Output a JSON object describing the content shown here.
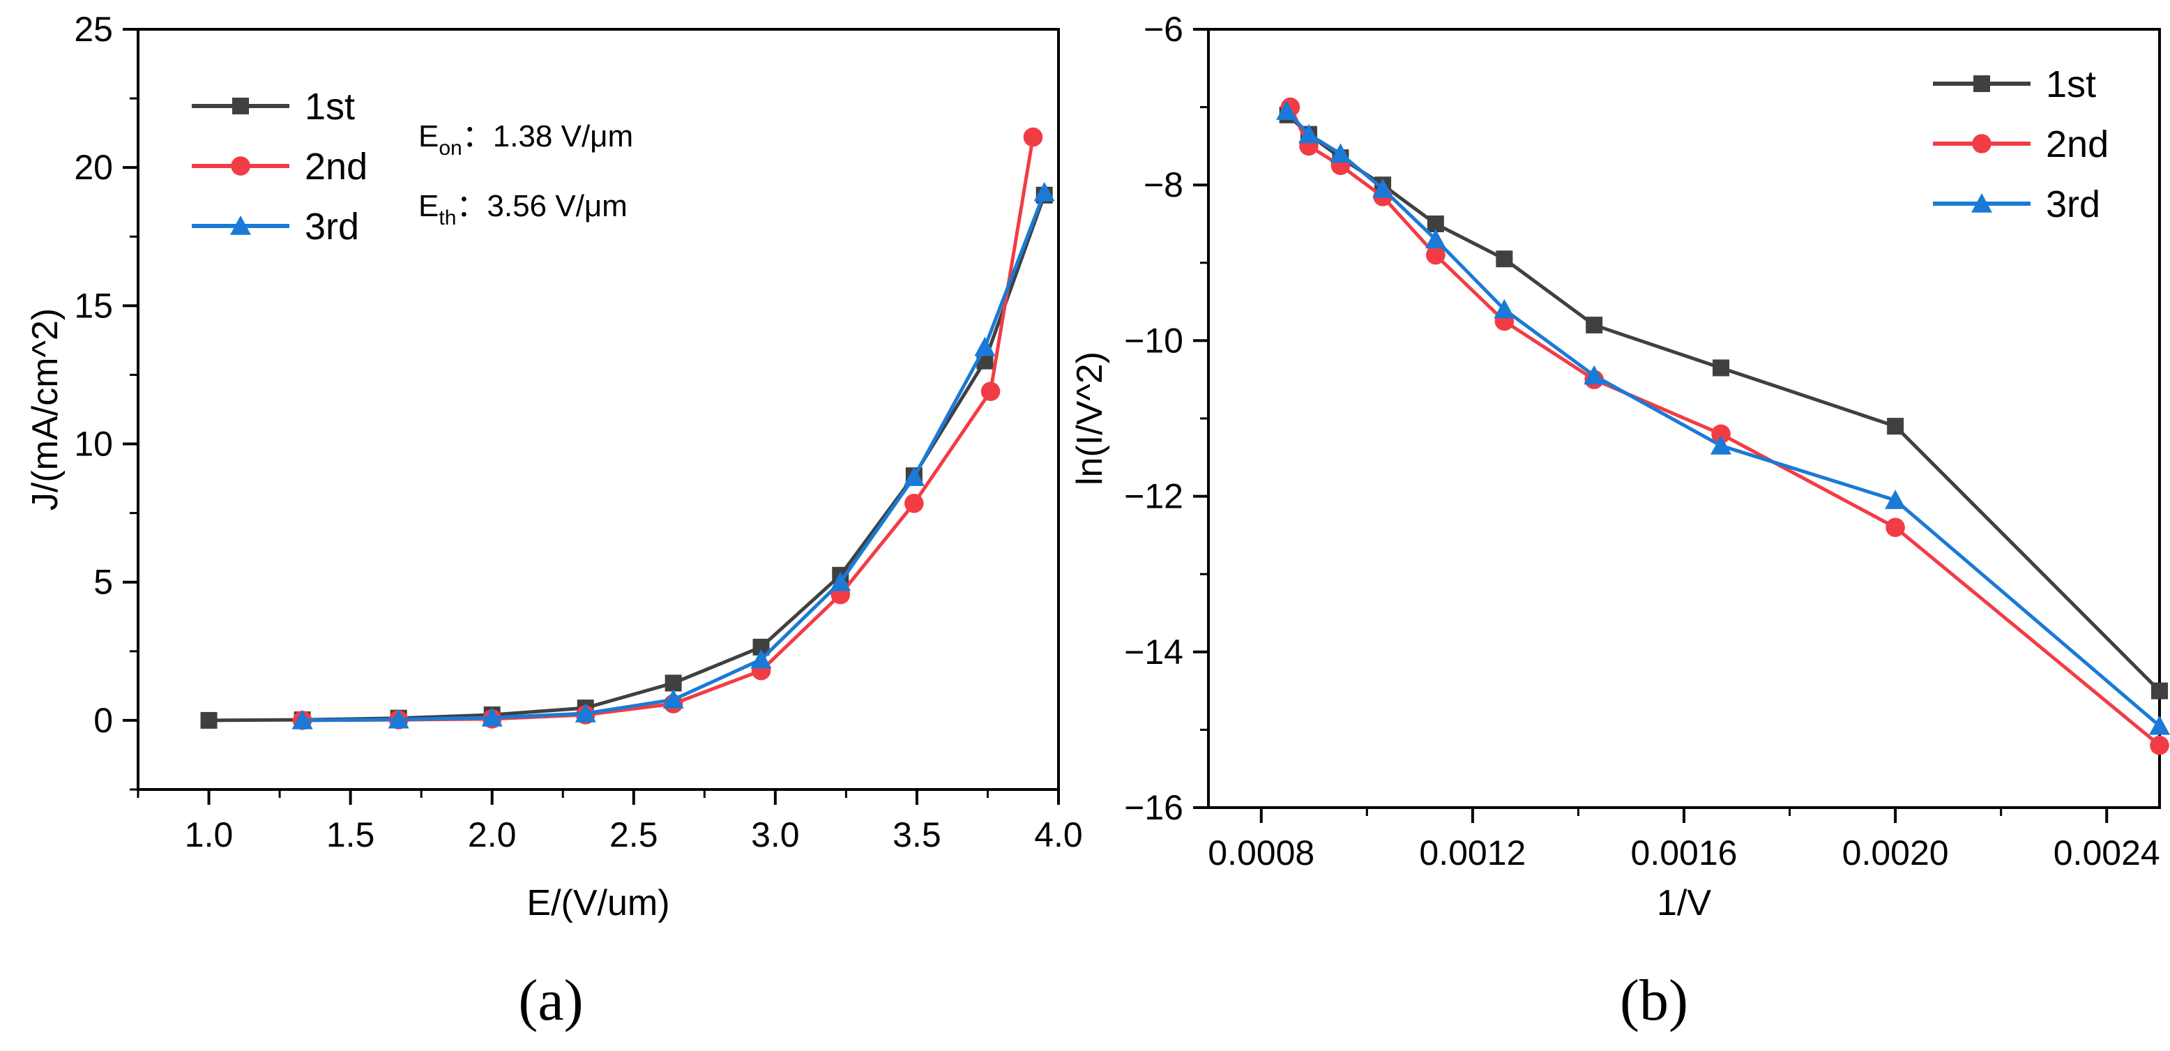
{
  "chart_data": [
    {
      "type": "line",
      "panel_label": "(a)",
      "xlabel": "E/(V/um)",
      "ylabel": "J/(mA/cm^2)",
      "xlim": [
        0.75,
        4.0
      ],
      "ylim": [
        -2.5,
        25
      ],
      "xticks": [
        1.0,
        1.5,
        2.0,
        2.5,
        3.0,
        3.5,
        4.0
      ],
      "xtick_labels": [
        "1.0",
        "1.5",
        "2.0",
        "2.5",
        "3.0",
        "3.5",
        "4.0"
      ],
      "yticks": [
        0,
        5,
        10,
        15,
        20,
        25
      ],
      "ytick_labels": [
        "0",
        "5",
        "10",
        "15",
        "20",
        "25"
      ],
      "legend_position": "top-left",
      "annotations": {
        "eon": {
          "symbol": "E",
          "sub": "on",
          "value": "：1.38 V/μm"
        },
        "eth": {
          "symbol": "E",
          "sub": "th",
          "value": "：3.56 V/μm"
        }
      },
      "series": [
        {
          "name": "1st",
          "color": "#404040",
          "marker": "square",
          "x": [
            1.0,
            1.33,
            1.67,
            2.0,
            2.33,
            2.64,
            2.95,
            3.23,
            3.49,
            3.74,
            3.95
          ],
          "y": [
            0.0,
            0.02,
            0.08,
            0.2,
            0.45,
            1.35,
            2.65,
            5.25,
            8.85,
            13.0,
            19.0
          ]
        },
        {
          "name": "2nd",
          "color": "#f23c45",
          "marker": "circle",
          "x": [
            1.33,
            1.67,
            2.0,
            2.33,
            2.64,
            2.95,
            3.23,
            3.49,
            3.76,
            3.91
          ],
          "y": [
            0.0,
            0.02,
            0.05,
            0.2,
            0.6,
            1.8,
            4.55,
            7.85,
            11.9,
            21.1
          ]
        },
        {
          "name": "3rd",
          "color": "#1a7ad6",
          "marker": "triangle",
          "x": [
            1.33,
            1.67,
            2.0,
            2.33,
            2.64,
            2.95,
            3.23,
            3.49,
            3.74,
            3.95
          ],
          "y": [
            0.0,
            0.03,
            0.1,
            0.25,
            0.75,
            2.2,
            5.0,
            8.8,
            13.5,
            19.1
          ]
        }
      ]
    },
    {
      "type": "line",
      "panel_label": "(b)",
      "xlabel": "1/V",
      "ylabel": "ln(I/V^2)",
      "xlim": [
        0.0007,
        0.0025
      ],
      "ylim": [
        -16,
        -6
      ],
      "xticks": [
        0.0008,
        0.0012,
        0.0016,
        0.002,
        0.0024
      ],
      "xtick_labels": [
        "0.0008",
        "0.0012",
        "0.0016",
        "0.0020",
        "0.0024"
      ],
      "yticks": [
        -16,
        -14,
        -12,
        -10,
        -8,
        -6
      ],
      "ytick_labels": [
        "−16",
        "−14",
        "−12",
        "−10",
        "−8",
        "−6"
      ],
      "legend_position": "top-right",
      "series": [
        {
          "name": "1st",
          "color": "#404040",
          "marker": "square",
          "x": [
            0.00085,
            0.00089,
            0.00095,
            0.00103,
            0.00113,
            0.00126,
            0.00143,
            0.00167,
            0.002,
            0.0025
          ],
          "y": [
            -7.1,
            -7.35,
            -7.65,
            -8.0,
            -8.5,
            -8.95,
            -9.8,
            -10.35,
            -11.1,
            -14.5
          ]
        },
        {
          "name": "2nd",
          "color": "#f23c45",
          "marker": "circle",
          "x": [
            0.000855,
            0.00089,
            0.00095,
            0.00103,
            0.00113,
            0.00126,
            0.00143,
            0.00167,
            0.002,
            0.0025
          ],
          "y": [
            -7.0,
            -7.5,
            -7.75,
            -8.15,
            -8.9,
            -9.75,
            -10.5,
            -11.2,
            -12.4,
            -15.2
          ]
        },
        {
          "name": "3rd",
          "color": "#1a7ad6",
          "marker": "triangle",
          "x": [
            0.000848,
            0.00089,
            0.00095,
            0.00103,
            0.00113,
            0.00126,
            0.00143,
            0.00167,
            0.002,
            0.0025
          ],
          "y": [
            -7.05,
            -7.35,
            -7.6,
            -8.05,
            -8.7,
            -9.6,
            -10.45,
            -11.35,
            -12.05,
            -14.95
          ]
        }
      ]
    }
  ]
}
